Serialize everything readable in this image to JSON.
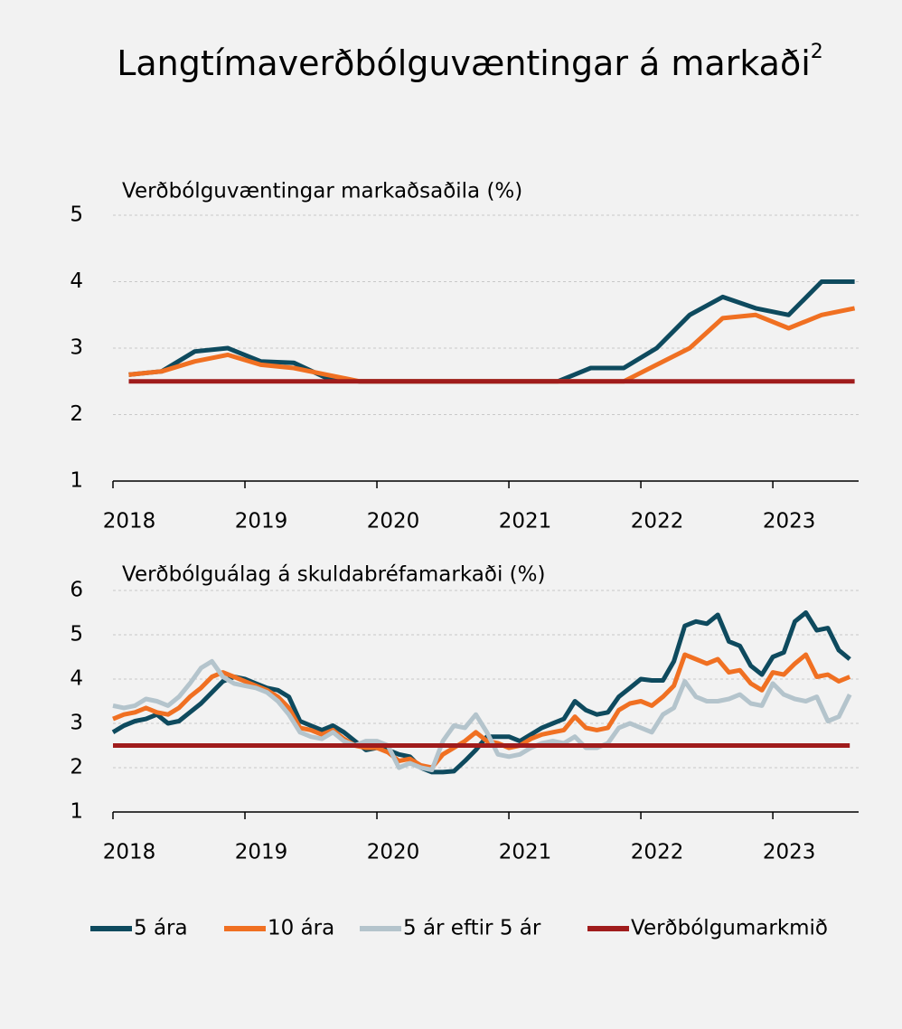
{
  "title": "Langtímaverðbólguvæntingar á markaði",
  "title_note": "2",
  "chart_data": [
    {
      "type": "line",
      "subtitle": "Verðbólguvæntingar markaðsaðila (%)",
      "x": [
        2018.12,
        2018.37,
        2018.62,
        2018.87,
        2019.12,
        2019.37,
        2019.62,
        2019.87,
        2020.12,
        2020.37,
        2020.62,
        2020.87,
        2021.12,
        2021.37,
        2021.62,
        2021.87,
        2022.12,
        2022.37,
        2022.62,
        2022.87,
        2023.12,
        2023.37,
        2023.62
      ],
      "xlim": [
        2018,
        2023.65
      ],
      "xticks": [
        2018,
        2019,
        2020,
        2021,
        2022,
        2023
      ],
      "ylim": [
        1,
        5
      ],
      "yticks": [
        1,
        2,
        3,
        4,
        5
      ],
      "grid": true,
      "series": [
        {
          "name": "5 ára",
          "color": "#0e4a5e",
          "values": [
            2.6,
            2.65,
            2.95,
            3.0,
            2.8,
            2.78,
            2.55,
            2.5,
            2.5,
            2.5,
            2.5,
            2.5,
            2.5,
            2.5,
            2.7,
            2.7,
            3.0,
            3.5,
            3.77,
            3.6,
            3.5,
            4.0,
            4.0
          ]
        },
        {
          "name": "10 ára",
          "color": "#f07022",
          "values": [
            2.6,
            2.65,
            2.8,
            2.9,
            2.75,
            2.7,
            2.6,
            2.5,
            2.5,
            2.5,
            2.5,
            2.5,
            2.5,
            2.5,
            2.5,
            2.5,
            2.75,
            3.0,
            3.45,
            3.5,
            3.3,
            3.5,
            3.6
          ]
        },
        {
          "name": "Verðbólgumarkmið",
          "color": "#a01c1c",
          "values": [
            2.5,
            2.5,
            2.5,
            2.5,
            2.5,
            2.5,
            2.5,
            2.5,
            2.5,
            2.5,
            2.5,
            2.5,
            2.5,
            2.5,
            2.5,
            2.5,
            2.5,
            2.5,
            2.5,
            2.5,
            2.5,
            2.5,
            2.5
          ]
        }
      ]
    },
    {
      "type": "line",
      "subtitle": "Verðbólguálag á skuldabréfamarkaði (%)",
      "x": [
        2018.0,
        2018.083,
        2018.167,
        2018.25,
        2018.333,
        2018.417,
        2018.5,
        2018.583,
        2018.667,
        2018.75,
        2018.833,
        2018.917,
        2019.0,
        2019.083,
        2019.167,
        2019.25,
        2019.333,
        2019.417,
        2019.5,
        2019.583,
        2019.667,
        2019.75,
        2019.833,
        2019.917,
        2020.0,
        2020.083,
        2020.167,
        2020.25,
        2020.333,
        2020.417,
        2020.5,
        2020.583,
        2020.667,
        2020.75,
        2020.833,
        2020.917,
        2021.0,
        2021.083,
        2021.167,
        2021.25,
        2021.333,
        2021.417,
        2021.5,
        2021.583,
        2021.667,
        2021.75,
        2021.833,
        2021.917,
        2022.0,
        2022.083,
        2022.167,
        2022.25,
        2022.333,
        2022.417,
        2022.5,
        2022.583,
        2022.667,
        2022.75,
        2022.833,
        2022.917,
        2023.0,
        2023.083,
        2023.167,
        2023.25,
        2023.333,
        2023.417,
        2023.5,
        2023.583
      ],
      "xlim": [
        2018,
        2023.65
      ],
      "xticks": [
        2018,
        2019,
        2020,
        2021,
        2022,
        2023
      ],
      "ylim": [
        1,
        6
      ],
      "yticks": [
        1,
        2,
        3,
        4,
        5,
        6
      ],
      "grid": true,
      "series": [
        {
          "name": "5 ára",
          "color": "#0e4a5e",
          "values": [
            2.8,
            2.95,
            3.05,
            3.1,
            3.2,
            3.0,
            3.05,
            3.25,
            3.45,
            3.7,
            3.95,
            4.05,
            4.0,
            3.9,
            3.8,
            3.75,
            3.6,
            3.05,
            2.95,
            2.85,
            2.95,
            2.8,
            2.6,
            2.4,
            2.45,
            2.4,
            2.3,
            2.25,
            2.0,
            1.9,
            1.9,
            1.92,
            2.15,
            2.4,
            2.7,
            2.7,
            2.7,
            2.6,
            2.75,
            2.9,
            3.0,
            3.1,
            3.5,
            3.3,
            3.2,
            3.25,
            3.6,
            3.8,
            4.0,
            3.97,
            3.97,
            4.4,
            5.2,
            5.3,
            5.25,
            5.45,
            4.85,
            4.75,
            4.3,
            4.1,
            4.5,
            4.6,
            5.3,
            5.5,
            5.1,
            5.15,
            4.65,
            4.45
          ]
        },
        {
          "name": "10 ára",
          "color": "#f07022",
          "values": [
            3.1,
            3.2,
            3.25,
            3.35,
            3.25,
            3.2,
            3.35,
            3.6,
            3.8,
            4.05,
            4.15,
            4.05,
            3.95,
            3.85,
            3.75,
            3.6,
            3.35,
            2.9,
            2.85,
            2.75,
            2.85,
            2.65,
            2.5,
            2.45,
            2.45,
            2.35,
            2.15,
            2.2,
            2.05,
            2.0,
            2.3,
            2.45,
            2.6,
            2.8,
            2.6,
            2.55,
            2.45,
            2.5,
            2.65,
            2.75,
            2.8,
            2.85,
            3.15,
            2.9,
            2.85,
            2.9,
            3.3,
            3.45,
            3.5,
            3.4,
            3.6,
            3.85,
            4.55,
            4.45,
            4.35,
            4.45,
            4.15,
            4.2,
            3.9,
            3.75,
            4.15,
            4.1,
            4.35,
            4.55,
            4.05,
            4.1,
            3.95,
            4.05
          ]
        },
        {
          "name": "5 ár eftir 5 ár",
          "color": "#b4c4cc",
          "values": [
            3.4,
            3.35,
            3.4,
            3.55,
            3.5,
            3.4,
            3.6,
            3.9,
            4.25,
            4.4,
            4.05,
            3.9,
            3.85,
            3.8,
            3.7,
            3.5,
            3.2,
            2.8,
            2.7,
            2.65,
            2.8,
            2.6,
            2.5,
            2.6,
            2.6,
            2.5,
            2.0,
            2.1,
            2.0,
            1.95,
            2.6,
            2.95,
            2.9,
            3.2,
            2.8,
            2.3,
            2.25,
            2.3,
            2.45,
            2.55,
            2.6,
            2.55,
            2.7,
            2.45,
            2.45,
            2.55,
            2.9,
            3.0,
            2.9,
            2.8,
            3.2,
            3.35,
            3.95,
            3.6,
            3.5,
            3.5,
            3.55,
            3.65,
            3.45,
            3.4,
            3.9,
            3.65,
            3.55,
            3.5,
            3.6,
            3.05,
            3.15,
            3.65
          ]
        },
        {
          "name": "Verðbólgumarkmið",
          "color": "#a01c1c",
          "values": [
            2.5,
            2.5,
            2.5,
            2.5,
            2.5,
            2.5,
            2.5,
            2.5,
            2.5,
            2.5,
            2.5,
            2.5,
            2.5,
            2.5,
            2.5,
            2.5,
            2.5,
            2.5,
            2.5,
            2.5,
            2.5,
            2.5,
            2.5,
            2.5,
            2.5,
            2.5,
            2.5,
            2.5,
            2.5,
            2.5,
            2.5,
            2.5,
            2.5,
            2.5,
            2.5,
            2.5,
            2.5,
            2.5,
            2.5,
            2.5,
            2.5,
            2.5,
            2.5,
            2.5,
            2.5,
            2.5,
            2.5,
            2.5,
            2.5,
            2.5,
            2.5,
            2.5,
            2.5,
            2.5,
            2.5,
            2.5,
            2.5,
            2.5,
            2.5,
            2.5,
            2.5,
            2.5,
            2.5,
            2.5,
            2.5,
            2.5,
            2.5,
            2.5
          ]
        }
      ]
    }
  ]
}
